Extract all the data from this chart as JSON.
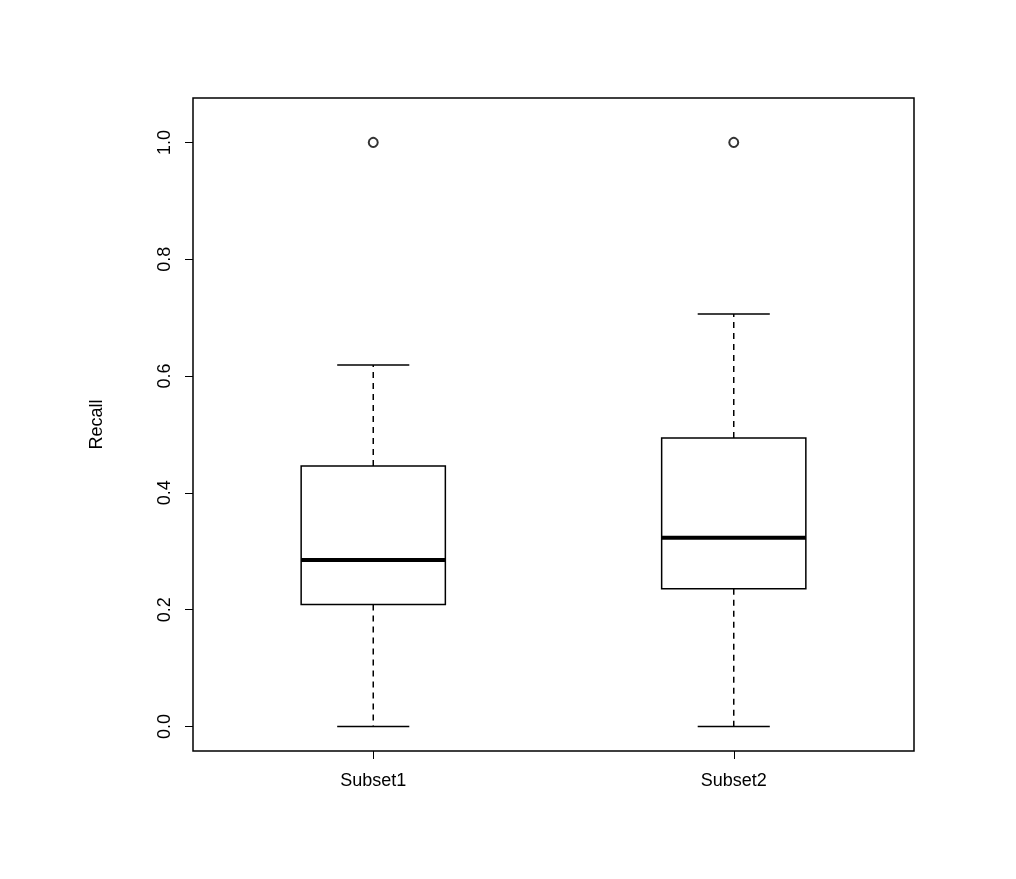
{
  "chart_data": {
    "type": "box",
    "ylabel": "Recall",
    "categories": [
      "Subset1",
      "Subset2"
    ],
    "boxes": [
      {
        "low": 0,
        "q1": 0.209,
        "median": 0.285,
        "q3": 0.446,
        "high": 0.619,
        "outliers": [
          1.0
        ]
      },
      {
        "low": 0,
        "q1": 0.236,
        "median": 0.323,
        "q3": 0.494,
        "high": 0.706,
        "outliers": [
          1.0
        ]
      }
    ],
    "color": "#000000",
    "ylim": [
      -0.042,
      1.076
    ],
    "yticks": [
      {
        "value": 0,
        "label": "0.0"
      },
      0.2,
      0.4,
      0.6,
      0.8,
      {
        "value": 1,
        "label": "1.0"
      }
    ],
    "grid": false
  }
}
